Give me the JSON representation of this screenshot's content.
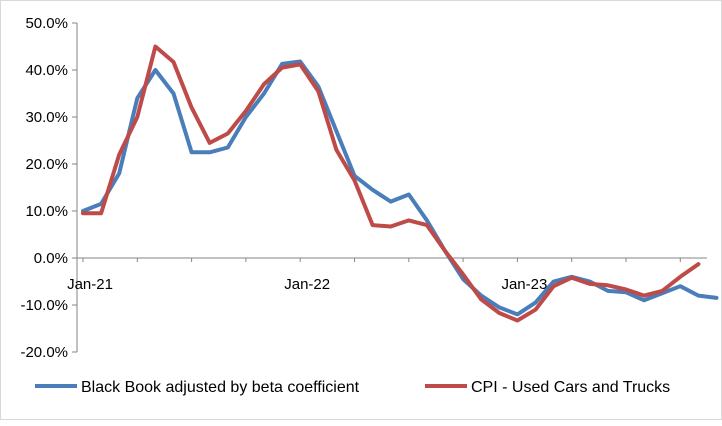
{
  "chart_data": {
    "type": "line",
    "title": "",
    "xlabel": "",
    "ylabel": "",
    "ylim": [
      -20,
      50
    ],
    "yticks": [
      50,
      40,
      30,
      20,
      10,
      0,
      -10,
      -20
    ],
    "ytick_labels": [
      "50.0%",
      "40.0%",
      "30.0%",
      "20.0%",
      "10.0%",
      "0.0%",
      "-10.0%",
      "-20.0%"
    ],
    "x_tick_labels": [
      {
        "label": "Jan-21",
        "index": 0
      },
      {
        "label": "Jan-22",
        "index": 12
      },
      {
        "label": "Jan-23",
        "index": 24
      }
    ],
    "grid": false,
    "legend_position": "bottom",
    "series": [
      {
        "name": "Black Book adjusted by beta coefficient",
        "color": "#4a7ebb",
        "values": [
          10.0,
          11.5,
          18.0,
          34.0,
          40.0,
          35.0,
          22.5,
          22.5,
          23.5,
          30.0,
          35.0,
          41.3,
          41.8,
          36.5,
          27.0,
          17.5,
          14.5,
          12.0,
          13.5,
          8.0,
          1.5,
          -4.5,
          -8.0,
          -10.5,
          -12.0,
          -9.5,
          -5.0,
          -4.0,
          -5.0,
          -7.0,
          -7.3,
          -9.0,
          -7.5,
          -6.0,
          -8.0,
          -8.5
        ]
      },
      {
        "name": "CPI - Used Cars and Trucks",
        "color": "#be4b48",
        "values": [
          9.5,
          9.5,
          22.0,
          30.0,
          45.0,
          41.7,
          32.0,
          24.5,
          26.5,
          31.3,
          37.0,
          40.5,
          41.2,
          35.5,
          23.0,
          16.5,
          7.0,
          6.7,
          8.0,
          7.0,
          1.5,
          -3.5,
          -8.8,
          -11.7,
          -13.3,
          -11.0,
          -6.0,
          -4.2,
          -5.5,
          -5.8,
          -6.7,
          -8.0,
          -7.0,
          -4.0,
          -1.3
        ]
      }
    ]
  }
}
